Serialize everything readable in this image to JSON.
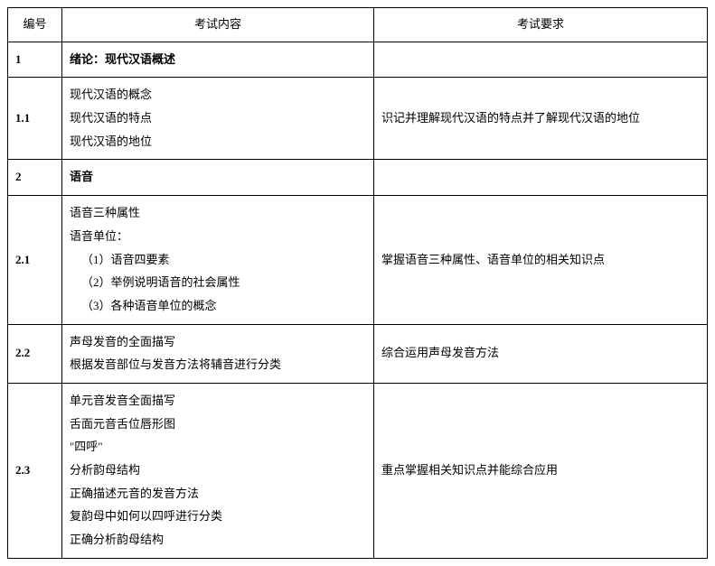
{
  "header": {
    "id": "编号",
    "content": "考试内容",
    "requirement": "考试要求"
  },
  "rows": [
    {
      "id": "1",
      "bold": true,
      "content_lines": [
        "绪论：现代汉语概述"
      ],
      "requirement": ""
    },
    {
      "id": "1.1",
      "bold": false,
      "content_lines": [
        "现代汉语的概念",
        "现代汉语的特点",
        "现代汉语的地位"
      ],
      "requirement": "识记并理解现代汉语的特点并了解现代汉语的地位"
    },
    {
      "id": "2",
      "bold": true,
      "content_lines": [
        "语音"
      ],
      "requirement": ""
    },
    {
      "id": "2.1",
      "bold": false,
      "content_lines": [
        "语音三种属性",
        "语音单位：",
        "（1）语音四要素",
        "（2）举例说明语音的社会属性",
        "（3）各种语音单位的概念"
      ],
      "content_indents": [
        0,
        0,
        1,
        1,
        1
      ],
      "requirement": "掌握语音三种属性、语音单位的相关知识点"
    },
    {
      "id": "2.2",
      "bold": false,
      "content_lines": [
        "声母发音的全面描写",
        "根据发音部位与发音方法将辅音进行分类"
      ],
      "requirement": "综合运用声母发音方法"
    },
    {
      "id": "2.3",
      "bold": false,
      "content_lines": [
        "单元音发音全面描写",
        "舌面元音舌位唇形图",
        "\"四呼\"",
        "分析韵母结构",
        "正确描述元音的发音方法",
        "复韵母中如何以四呼进行分类",
        "正确分析韵母结构"
      ],
      "requirement": "重点掌握相关知识点并能综合应用"
    }
  ]
}
